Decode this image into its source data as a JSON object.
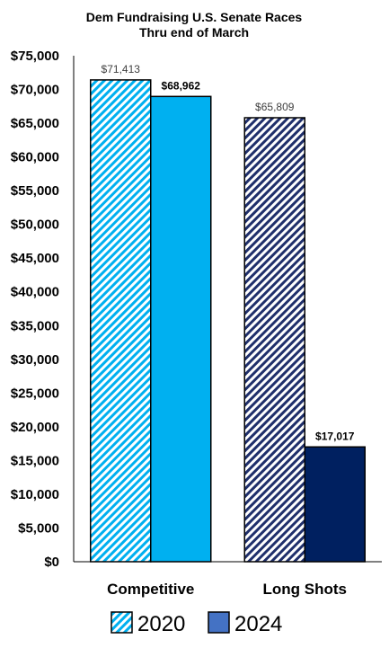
{
  "chart_data": {
    "type": "bar",
    "title": "Dem Fundraising U.S. Senate Races",
    "subtitle": "Thru end of March",
    "categories": [
      "Competitive",
      "Long Shots"
    ],
    "series": [
      {
        "name": "2020",
        "values": [
          71413,
          65809
        ],
        "labels": [
          "$71,413",
          "$65,809"
        ],
        "colors": [
          "#00B0F0",
          "#1F2F6B"
        ],
        "pattern": "diagonal-hatch",
        "label_bold": false
      },
      {
        "name": "2024",
        "values": [
          68962,
          17017
        ],
        "labels": [
          "$68,962",
          "$17,017"
        ],
        "colors": [
          "#00B0F0",
          "#002060"
        ],
        "pattern": "solid",
        "label_bold": true
      }
    ],
    "ylim": [
      0,
      75000
    ],
    "ytick_step": 5000,
    "ytick_labels": [
      "$0",
      "$5,000",
      "$10,000",
      "$15,000",
      "$20,000",
      "$25,000",
      "$30,000",
      "$35,000",
      "$40,000",
      "$45,000",
      "$50,000",
      "$55,000",
      "$60,000",
      "$65,000",
      "$70,000",
      "$75,000"
    ],
    "xlabel": "",
    "ylabel": "",
    "grid": false,
    "legend_position": "bottom",
    "legend_entries": [
      {
        "label": "2020",
        "color": "#00B0F0",
        "pattern": "diagonal-hatch"
      },
      {
        "label": "2024",
        "color": "#4472C4",
        "pattern": "solid"
      }
    ]
  }
}
